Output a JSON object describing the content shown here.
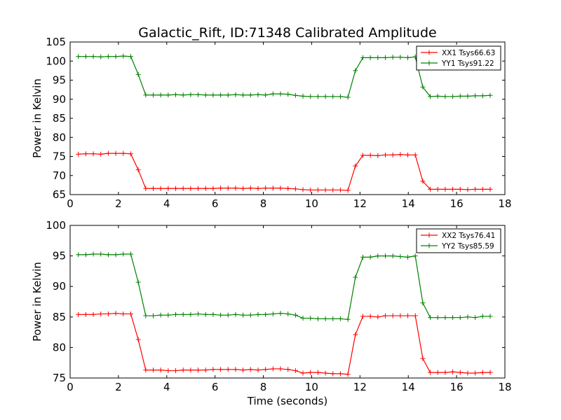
{
  "chart_data": {
    "title": "Galactic_Rift, ID:71348 Calibrated Amplitude",
    "xlabel": "Time (seconds)",
    "panels": [
      {
        "type": "line",
        "ylabel": "Power in Kelvin",
        "xlim": [
          0,
          18
        ],
        "ylim": [
          65,
          105
        ],
        "xticks": [
          "0",
          "2",
          "4",
          "6",
          "8",
          "10",
          "12",
          "14",
          "16",
          "18"
        ],
        "yticks": [
          "65",
          "70",
          "75",
          "80",
          "85",
          "90",
          "95",
          "100",
          "105"
        ],
        "legend_position": "top-right",
        "x": [
          0.34,
          0.65,
          0.96,
          1.27,
          1.58,
          1.89,
          2.2,
          2.51,
          2.82,
          3.13,
          3.44,
          3.75,
          4.06,
          4.37,
          4.68,
          4.99,
          5.3,
          5.61,
          5.92,
          6.23,
          6.54,
          6.85,
          7.16,
          7.47,
          7.78,
          8.09,
          8.4,
          8.71,
          9.02,
          9.33,
          9.64,
          9.95,
          10.26,
          10.57,
          10.88,
          11.19,
          11.5,
          11.81,
          12.12,
          12.43,
          12.74,
          13.05,
          13.36,
          13.67,
          13.98,
          14.29,
          14.6,
          14.91,
          15.22,
          15.53,
          15.84,
          16.15,
          16.46,
          16.77,
          17.08,
          17.39
        ],
        "series": [
          {
            "name": "XX1 Tsys66.63",
            "color": "#ff0000",
            "values": [
              75.6,
              75.7,
              75.7,
              75.6,
              75.8,
              75.8,
              75.8,
              75.7,
              71.5,
              66.6,
              66.6,
              66.6,
              66.6,
              66.6,
              66.6,
              66.6,
              66.6,
              66.6,
              66.6,
              66.7,
              66.7,
              66.7,
              66.6,
              66.7,
              66.6,
              66.7,
              66.7,
              66.7,
              66.6,
              66.5,
              66.3,
              66.2,
              66.2,
              66.2,
              66.2,
              66.2,
              66.1,
              72.5,
              75.3,
              75.3,
              75.2,
              75.4,
              75.4,
              75.5,
              75.4,
              75.4,
              68.5,
              66.4,
              66.4,
              66.4,
              66.4,
              66.4,
              66.3,
              66.4,
              66.4,
              66.4
            ]
          },
          {
            "name": "YY1 Tsys91.22",
            "color": "#008000",
            "values": [
              101.2,
              101.2,
              101.2,
              101.1,
              101.2,
              101.2,
              101.3,
              101.2,
              96.5,
              91.1,
              91.1,
              91.1,
              91.1,
              91.2,
              91.1,
              91.2,
              91.2,
              91.1,
              91.1,
              91.1,
              91.1,
              91.2,
              91.1,
              91.1,
              91.2,
              91.1,
              91.4,
              91.4,
              91.3,
              91.0,
              90.8,
              90.7,
              90.7,
              90.7,
              90.7,
              90.7,
              90.5,
              97.5,
              100.9,
              100.9,
              100.9,
              100.9,
              101.0,
              101.0,
              100.9,
              101.1,
              93.2,
              90.7,
              90.8,
              90.7,
              90.7,
              90.8,
              90.8,
              90.9,
              90.9,
              91.0
            ]
          }
        ]
      },
      {
        "type": "line",
        "ylabel": "Power in Kelvin",
        "xlim": [
          0,
          18
        ],
        "ylim": [
          75,
          100
        ],
        "xticks": [
          "0",
          "2",
          "4",
          "6",
          "8",
          "10",
          "12",
          "14",
          "16",
          "18"
        ],
        "yticks": [
          "75",
          "80",
          "85",
          "90",
          "95",
          "100"
        ],
        "legend_position": "top-right",
        "x": [
          0.34,
          0.65,
          0.96,
          1.27,
          1.58,
          1.89,
          2.2,
          2.51,
          2.82,
          3.13,
          3.44,
          3.75,
          4.06,
          4.37,
          4.68,
          4.99,
          5.3,
          5.61,
          5.92,
          6.23,
          6.54,
          6.85,
          7.16,
          7.47,
          7.78,
          8.09,
          8.4,
          8.71,
          9.02,
          9.33,
          9.64,
          9.95,
          10.26,
          10.57,
          10.88,
          11.19,
          11.5,
          11.81,
          12.12,
          12.43,
          12.74,
          13.05,
          13.36,
          13.67,
          13.98,
          14.29,
          14.6,
          14.91,
          15.22,
          15.53,
          15.84,
          16.15,
          16.46,
          16.77,
          17.08,
          17.39
        ],
        "series": [
          {
            "name": "XX2 Tsys76.41",
            "color": "#ff0000",
            "values": [
              85.4,
              85.4,
              85.4,
              85.5,
              85.5,
              85.6,
              85.5,
              85.5,
              81.3,
              76.3,
              76.3,
              76.3,
              76.2,
              76.2,
              76.3,
              76.3,
              76.3,
              76.3,
              76.4,
              76.4,
              76.4,
              76.4,
              76.3,
              76.4,
              76.3,
              76.4,
              76.5,
              76.5,
              76.4,
              76.2,
              75.8,
              75.9,
              75.9,
              75.8,
              75.7,
              75.7,
              75.6,
              82.1,
              85.1,
              85.1,
              85.0,
              85.2,
              85.2,
              85.2,
              85.2,
              85.2,
              78.2,
              75.9,
              75.9,
              75.9,
              76.0,
              75.9,
              75.8,
              75.8,
              75.9,
              75.9
            ]
          },
          {
            "name": "YY2 Tsys85.59",
            "color": "#008000",
            "values": [
              95.2,
              95.2,
              95.3,
              95.3,
              95.2,
              95.2,
              95.3,
              95.3,
              90.7,
              85.2,
              85.2,
              85.3,
              85.3,
              85.4,
              85.4,
              85.4,
              85.5,
              85.4,
              85.4,
              85.3,
              85.3,
              85.4,
              85.3,
              85.3,
              85.4,
              85.4,
              85.5,
              85.6,
              85.5,
              85.3,
              84.8,
              84.8,
              84.7,
              84.7,
              84.7,
              84.7,
              84.6,
              91.5,
              94.8,
              94.8,
              95.0,
              95.0,
              95.0,
              94.9,
              94.8,
              95.0,
              87.3,
              84.9,
              84.9,
              84.9,
              84.9,
              84.9,
              85.0,
              84.9,
              85.1,
              85.1
            ]
          }
        ]
      }
    ]
  }
}
